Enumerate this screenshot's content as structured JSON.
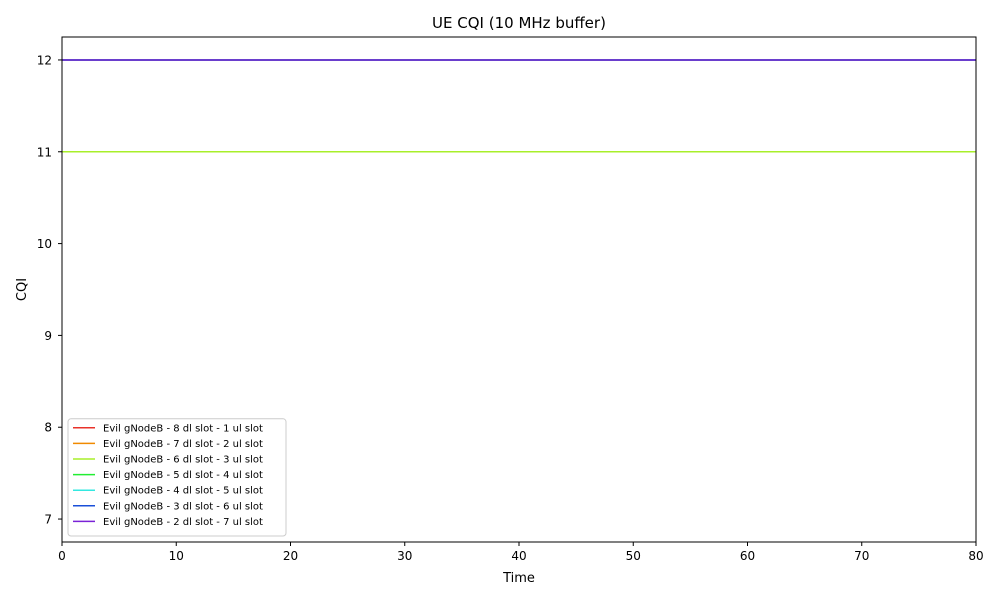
{
  "chart_data": {
    "type": "line",
    "title": "UE CQI (10 MHz buffer)",
    "xlabel": "Time",
    "ylabel": "CQI",
    "xlim": [
      0,
      80
    ],
    "ylim": [
      6.75,
      12.25
    ],
    "xticks": [
      0,
      10,
      20,
      30,
      40,
      50,
      60,
      70,
      80
    ],
    "yticks": [
      7,
      8,
      9,
      10,
      11,
      12
    ],
    "grid": false,
    "legend_position": "lower-left",
    "series": [
      {
        "name": "Evil gNodeB - 8 dl slot - 1 ul slot",
        "color": "#e8322a",
        "x": [
          0,
          80
        ],
        "values": [
          12,
          12
        ]
      },
      {
        "name": "Evil gNodeB - 7 dl slot - 2 ul slot",
        "color": "#f08a00",
        "x": [
          0,
          80
        ],
        "values": [
          12,
          12
        ]
      },
      {
        "name": "Evil gNodeB - 6 dl slot - 3 ul slot",
        "color": "#a8ef2a",
        "x": [
          0,
          80
        ],
        "values": [
          11,
          11
        ]
      },
      {
        "name": "Evil gNodeB - 5 dl slot - 4 ul slot",
        "color": "#22ee33",
        "x": [
          0,
          80
        ],
        "values": [
          12,
          12
        ]
      },
      {
        "name": "Evil gNodeB - 4 dl slot - 5 ul slot",
        "color": "#33e8e0",
        "x": [
          0,
          80
        ],
        "values": [
          12,
          12
        ]
      },
      {
        "name": "Evil gNodeB - 3 dl slot - 6 ul slot",
        "color": "#1a4fd8",
        "x": [
          0,
          80
        ],
        "values": [
          12,
          12
        ]
      },
      {
        "name": "Evil gNodeB - 2 dl slot - 7 ul slot",
        "color": "#7a22d6",
        "x": [
          0,
          80
        ],
        "values": [
          12,
          12
        ]
      }
    ]
  }
}
